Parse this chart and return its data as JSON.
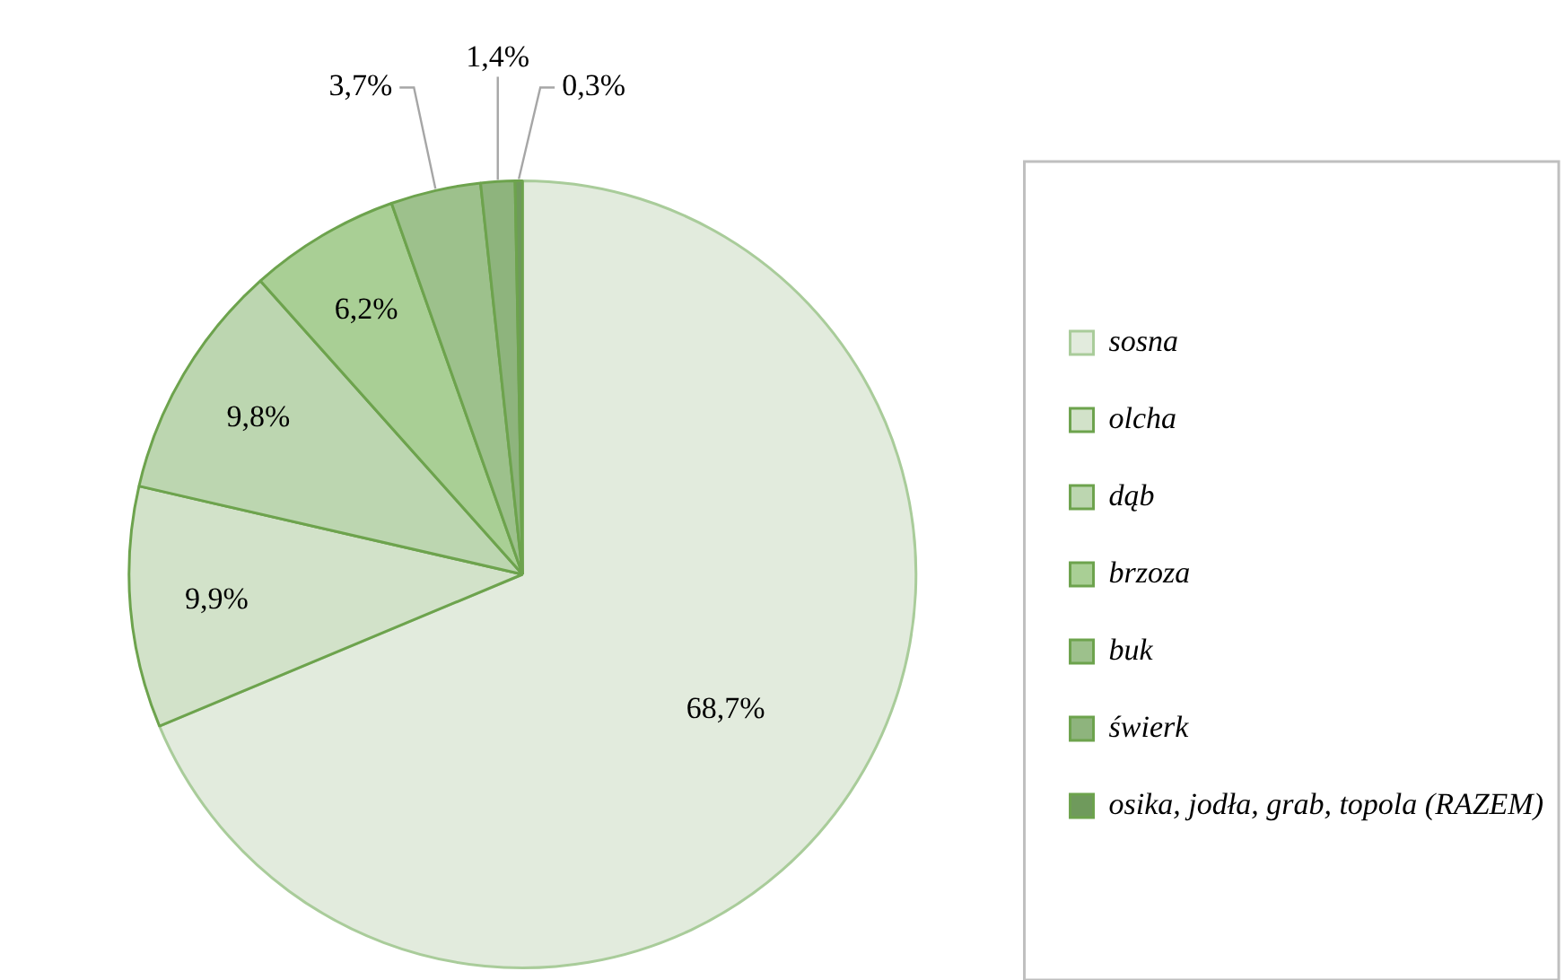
{
  "chart_data": {
    "type": "pie",
    "categories": [
      "sosna",
      "olcha",
      "dąb",
      "brzoza",
      "buk",
      "świerk",
      "osika, jodła, grab, topola (RAZEM)"
    ],
    "values": [
      68.7,
      9.9,
      9.8,
      6.2,
      3.7,
      1.4,
      0.3
    ],
    "value_labels": [
      "68,7%",
      "9,9%",
      "9,8%",
      "6,2%",
      "3,7%",
      "1,4%",
      "0,3%"
    ],
    "colors": [
      "#e2ebdd",
      "#d2e2c9",
      "#bcd6b0",
      "#a9cf95",
      "#9dc18c",
      "#8eb47d",
      "#6f9a5c"
    ],
    "legend": "right"
  }
}
